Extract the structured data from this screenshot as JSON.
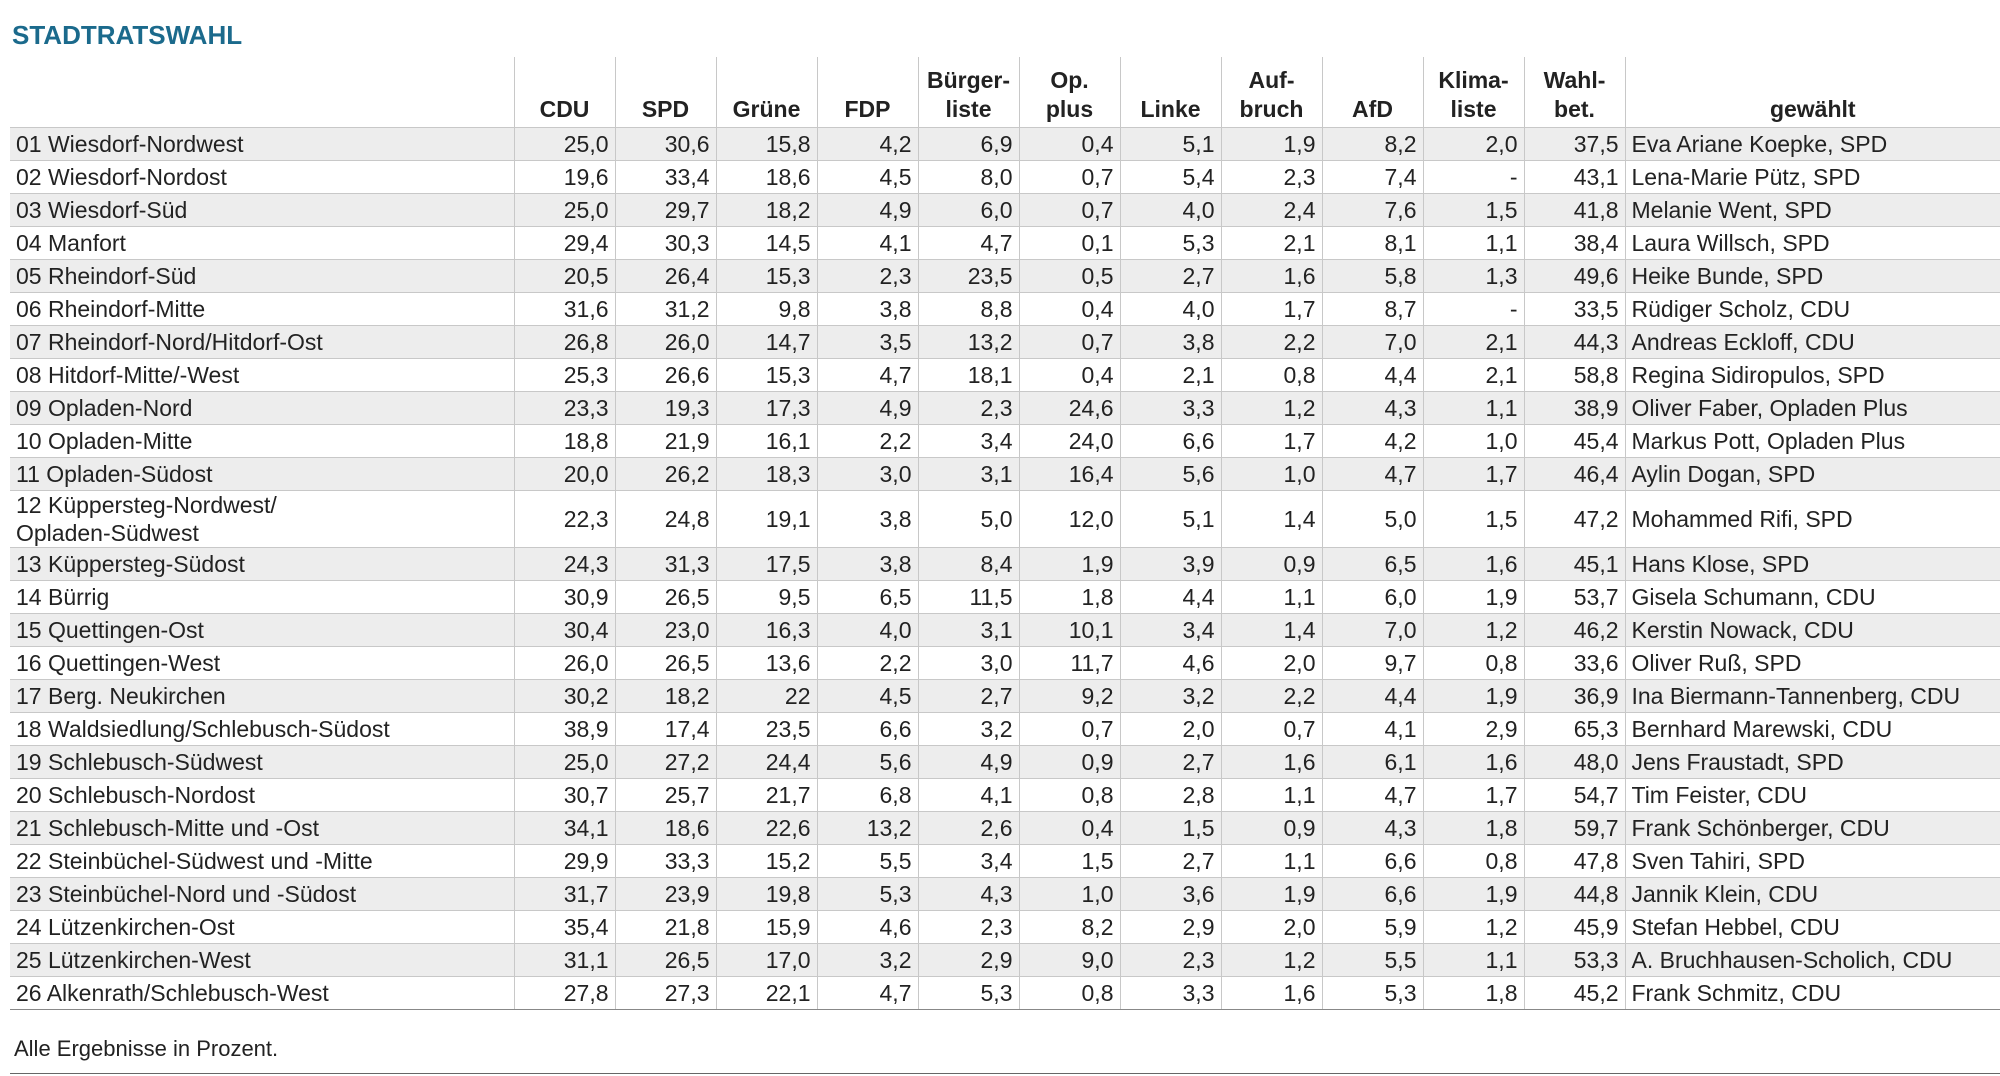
{
  "title": "STADTRATSWAHL",
  "table": {
    "header": [
      "",
      "CDU",
      "SPD",
      "Grüne",
      "FDP",
      "Bürger-\nliste",
      "Op.\nplus",
      "Linke",
      "Auf-\nbruch",
      "AfD",
      "Klima-\nliste",
      "Wahl-\nbet.",
      "gewählt"
    ],
    "rows": [
      [
        "01 Wiesdorf-Nordwest",
        "25,0",
        "30,6",
        "15,8",
        "4,2",
        "6,9",
        "0,4",
        "5,1",
        "1,9",
        "8,2",
        "2,0",
        "37,5",
        "Eva Ariane Koepke, SPD"
      ],
      [
        "02 Wiesdorf-Nordost",
        "19,6",
        "33,4",
        "18,6",
        "4,5",
        "8,0",
        "0,7",
        "5,4",
        "2,3",
        "7,4",
        "-",
        "43,1",
        "Lena-Marie Pütz, SPD"
      ],
      [
        "03 Wiesdorf-Süd",
        "25,0",
        "29,7",
        "18,2",
        "4,9",
        "6,0",
        "0,7",
        "4,0",
        "2,4",
        "7,6",
        "1,5",
        "41,8",
        "Melanie Went, SPD"
      ],
      [
        "04 Manfort",
        "29,4",
        "30,3",
        "14,5",
        "4,1",
        "4,7",
        "0,1",
        "5,3",
        "2,1",
        "8,1",
        "1,1",
        "38,4",
        "Laura Willsch, SPD"
      ],
      [
        "05 Rheindorf-Süd",
        "20,5",
        "26,4",
        "15,3",
        "2,3",
        "23,5",
        "0,5",
        "2,7",
        "1,6",
        "5,8",
        "1,3",
        "49,6",
        "Heike Bunde, SPD"
      ],
      [
        "06 Rheindorf-Mitte",
        "31,6",
        "31,2",
        "9,8",
        "3,8",
        "8,8",
        "0,4",
        "4,0",
        "1,7",
        "8,7",
        "-",
        "33,5",
        "Rüdiger Scholz, CDU"
      ],
      [
        "07 Rheindorf-Nord/Hitdorf-Ost",
        "26,8",
        "26,0",
        "14,7",
        "3,5",
        "13,2",
        "0,7",
        "3,8",
        "2,2",
        "7,0",
        "2,1",
        "44,3",
        "Andreas Eckloff, CDU"
      ],
      [
        "08 Hitdorf-Mitte/-West",
        "25,3",
        "26,6",
        "15,3",
        "4,7",
        "18,1",
        "0,4",
        "2,1",
        "0,8",
        "4,4",
        "2,1",
        "58,8",
        "Regina Sidiropulos, SPD"
      ],
      [
        "09 Opladen-Nord",
        "23,3",
        "19,3",
        "17,3",
        "4,9",
        "2,3",
        "24,6",
        "3,3",
        "1,2",
        "4,3",
        "1,1",
        "38,9",
        "Oliver Faber, Opladen Plus"
      ],
      [
        "10 Opladen-Mitte",
        "18,8",
        "21,9",
        "16,1",
        "2,2",
        "3,4",
        "24,0",
        "6,6",
        "1,7",
        "4,2",
        "1,0",
        "45,4",
        "Markus Pott, Opladen Plus"
      ],
      [
        "11 Opladen-Südost",
        "20,0",
        "26,2",
        "18,3",
        "3,0",
        "3,1",
        "16,4",
        "5,6",
        "1,0",
        "4,7",
        "1,7",
        "46,4",
        "Aylin Dogan, SPD"
      ],
      [
        "12 Küppersteg-Nordwest/\nOpladen-Südwest",
        "22,3",
        "24,8",
        "19,1",
        "3,8",
        "5,0",
        "12,0",
        "5,1",
        "1,4",
        "5,0",
        "1,5",
        "47,2",
        "Mohammed Rifi, SPD"
      ],
      [
        "13 Küppersteg-Südost",
        "24,3",
        "31,3",
        "17,5",
        "3,8",
        "8,4",
        "1,9",
        "3,9",
        "0,9",
        "6,5",
        "1,6",
        "45,1",
        "Hans Klose, SPD"
      ],
      [
        "14 Bürrig",
        "30,9",
        "26,5",
        "9,5",
        "6,5",
        "11,5",
        "1,8",
        "4,4",
        "1,1",
        "6,0",
        "1,9",
        "53,7",
        "Gisela Schumann, CDU"
      ],
      [
        "15 Quettingen-Ost",
        "30,4",
        "23,0",
        "16,3",
        "4,0",
        "3,1",
        "10,1",
        "3,4",
        "1,4",
        "7,0",
        "1,2",
        "46,2",
        "Kerstin Nowack, CDU"
      ],
      [
        "16 Quettingen-West",
        "26,0",
        "26,5",
        "13,6",
        "2,2",
        "3,0",
        "11,7",
        "4,6",
        "2,0",
        "9,7",
        "0,8",
        "33,6",
        "Oliver Ruß, SPD"
      ],
      [
        "17 Berg. Neukirchen",
        "30,2",
        "18,2",
        "22",
        "4,5",
        "2,7",
        "9,2",
        "3,2",
        "2,2",
        "4,4",
        "1,9",
        "36,9",
        "Ina Biermann-Tannenberg, CDU"
      ],
      [
        "18 Waldsiedlung/Schlebusch-Südost",
        "38,9",
        "17,4",
        "23,5",
        "6,6",
        "3,2",
        "0,7",
        "2,0",
        "0,7",
        "4,1",
        "2,9",
        "65,3",
        "Bernhard Marewski, CDU"
      ],
      [
        "19 Schlebusch-Südwest",
        "25,0",
        "27,2",
        "24,4",
        "5,6",
        "4,9",
        "0,9",
        "2,7",
        "1,6",
        "6,1",
        "1,6",
        "48,0",
        "Jens Fraustadt, SPD"
      ],
      [
        "20 Schlebusch-Nordost",
        "30,7",
        "25,7",
        "21,7",
        "6,8",
        "4,1",
        "0,8",
        "2,8",
        "1,1",
        "4,7",
        "1,7",
        "54,7",
        "Tim Feister, CDU"
      ],
      [
        "21 Schlebusch-Mitte und -Ost",
        "34,1",
        "18,6",
        "22,6",
        "13,2",
        "2,6",
        "0,4",
        "1,5",
        "0,9",
        "4,3",
        "1,8",
        "59,7",
        "Frank Schönberger, CDU"
      ],
      [
        "22 Steinbüchel-Südwest und -Mitte",
        "29,9",
        "33,3",
        "15,2",
        "5,5",
        "3,4",
        "1,5",
        "2,7",
        "1,1",
        "6,6",
        "0,8",
        "47,8",
        "Sven Tahiri, SPD"
      ],
      [
        "23 Steinbüchel-Nord und -Südost",
        "31,7",
        "23,9",
        "19,8",
        "5,3",
        "4,3",
        "1,0",
        "3,6",
        "1,9",
        "6,6",
        "1,9",
        "44,8",
        "Jannik Klein, CDU"
      ],
      [
        "24 Lützenkirchen-Ost",
        "35,4",
        "21,8",
        "15,9",
        "4,6",
        "2,3",
        "8,2",
        "2,9",
        "2,0",
        "5,9",
        "1,2",
        "45,9",
        "Stefan Hebbel, CDU"
      ],
      [
        "25 Lützenkirchen-West",
        "31,1",
        "26,5",
        "17,0",
        "3,2",
        "2,9",
        "9,0",
        "2,3",
        "1,2",
        "5,5",
        "1,1",
        "53,3",
        "A. Bruchhausen-Scholich, CDU"
      ],
      [
        "26 Alkenrath/Schlebusch-West",
        "27,8",
        "27,3",
        "22,1",
        "4,7",
        "5,3",
        "0,8",
        "3,3",
        "1,6",
        "5,3",
        "1,8",
        "45,2",
        "Frank Schmitz, CDU"
      ]
    ]
  },
  "footer": "Alle Ergebnisse in Prozent."
}
